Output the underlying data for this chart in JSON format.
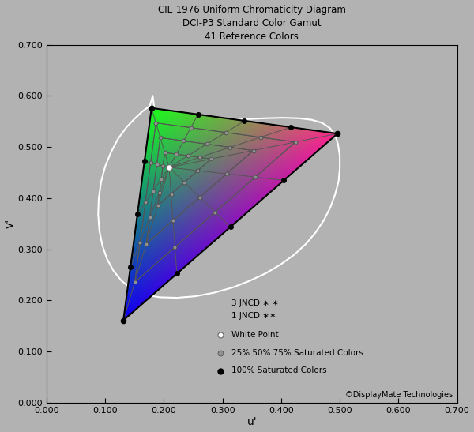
{
  "title_lines": [
    "CIE 1976 Uniform Chromaticity Diagram",
    "DCI-P3 Standard Color Gamut",
    "41 Reference Colors"
  ],
  "xlabel": "u'",
  "ylabel": "v'",
  "xlim": [
    0.0,
    0.7
  ],
  "ylim": [
    0.0,
    0.7
  ],
  "xticks": [
    0.0,
    0.1,
    0.2,
    0.3,
    0.4,
    0.5,
    0.6,
    0.7
  ],
  "yticks": [
    0.0,
    0.1,
    0.2,
    0.3,
    0.4,
    0.5,
    0.6,
    0.7
  ],
  "background_color": "#b2b2b2",
  "copyright": "©DisplayMate Technologies",
  "dci_p3_primaries_uv": {
    "red": [
      0.496,
      0.526
    ],
    "green": [
      0.179,
      0.576
    ],
    "blue": [
      0.131,
      0.161
    ]
  },
  "white_point_uv": [
    0.209,
    0.46
  ],
  "col_green": [
    0.1,
    1.0,
    0.1
  ],
  "col_red": [
    1.0,
    0.15,
    0.55
  ],
  "col_blue": [
    0.05,
    0.0,
    0.95
  ],
  "spectral_locus_uv": [
    [
      0.176,
      0.58
    ],
    [
      0.164,
      0.57
    ],
    [
      0.15,
      0.555
    ],
    [
      0.136,
      0.538
    ],
    [
      0.122,
      0.516
    ],
    [
      0.11,
      0.49
    ],
    [
      0.1,
      0.462
    ],
    [
      0.093,
      0.432
    ],
    [
      0.089,
      0.4
    ],
    [
      0.088,
      0.368
    ],
    [
      0.09,
      0.337
    ],
    [
      0.095,
      0.308
    ],
    [
      0.103,
      0.281
    ],
    [
      0.114,
      0.258
    ],
    [
      0.128,
      0.238
    ],
    [
      0.146,
      0.222
    ],
    [
      0.167,
      0.211
    ],
    [
      0.193,
      0.206
    ],
    [
      0.222,
      0.205
    ],
    [
      0.254,
      0.208
    ],
    [
      0.286,
      0.215
    ],
    [
      0.317,
      0.225
    ],
    [
      0.346,
      0.238
    ],
    [
      0.374,
      0.253
    ],
    [
      0.399,
      0.27
    ],
    [
      0.422,
      0.289
    ],
    [
      0.442,
      0.31
    ],
    [
      0.459,
      0.333
    ],
    [
      0.473,
      0.357
    ],
    [
      0.484,
      0.382
    ],
    [
      0.492,
      0.407
    ],
    [
      0.498,
      0.433
    ],
    [
      0.5,
      0.458
    ],
    [
      0.5,
      0.483
    ],
    [
      0.497,
      0.505
    ],
    [
      0.492,
      0.523
    ],
    [
      0.483,
      0.537
    ],
    [
      0.47,
      0.547
    ],
    [
      0.452,
      0.553
    ],
    [
      0.43,
      0.556
    ],
    [
      0.403,
      0.557
    ],
    [
      0.371,
      0.556
    ],
    [
      0.336,
      0.554
    ],
    [
      0.3,
      0.551
    ],
    [
      0.264,
      0.547
    ],
    [
      0.232,
      0.542
    ],
    [
      0.206,
      0.536
    ],
    [
      0.189,
      0.528
    ],
    [
      0.181,
      0.6
    ]
  ]
}
